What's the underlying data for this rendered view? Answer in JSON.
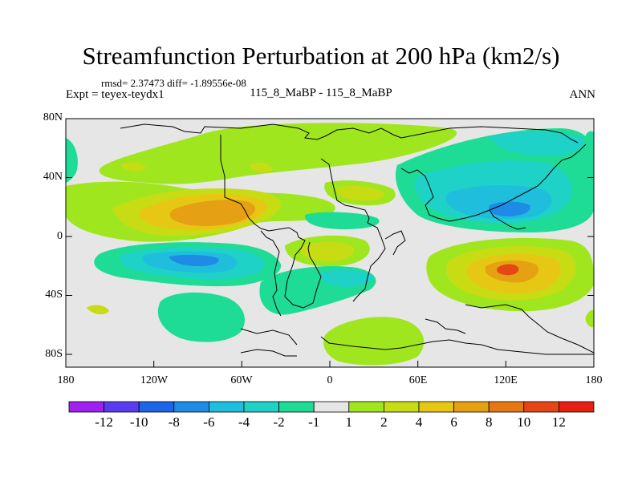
{
  "title": "Streamfunction Perturbation at 200 hPa (km2/s)",
  "stats": "rmsd= 2.37473 diff= -1.89556e-08",
  "expt": "Expt = teyex-teydx1",
  "case": "115_8_MaBP - 115_8_MaBP",
  "season": "ANN",
  "y_ticks": [
    "80N",
    "40N",
    "0",
    "40S",
    "80S"
  ],
  "x_ticks": [
    "180",
    "120W",
    "60W",
    "0",
    "60E",
    "120E",
    "180"
  ],
  "colorbar": {
    "colors": [
      "#a020f0",
      "#5a3cf0",
      "#1e64e6",
      "#1e8ce6",
      "#1ebedc",
      "#1ed2c8",
      "#1edc96",
      "#e6e6e6",
      "#a0e61e",
      "#c8dc14",
      "#e6c814",
      "#e6a014",
      "#e67814",
      "#e64614",
      "#e61e14"
    ],
    "labels": [
      "-12",
      "-10",
      "-8",
      "-6",
      "-4",
      "-2",
      "-1",
      "1",
      "2",
      "4",
      "6",
      "8",
      "10",
      "12"
    ]
  },
  "field_colors": {
    "bg": "#e6e6e6",
    "neg1": "#1edc96",
    "neg2": "#1ed2c8",
    "neg3": "#1ebedc",
    "neg4": "#1e8ce6",
    "pos1": "#a0e61e",
    "pos2": "#c8dc14",
    "pos3": "#e6c814",
    "pos4": "#e6a014",
    "pos5": "#e67814",
    "pos6": "#e64614"
  }
}
